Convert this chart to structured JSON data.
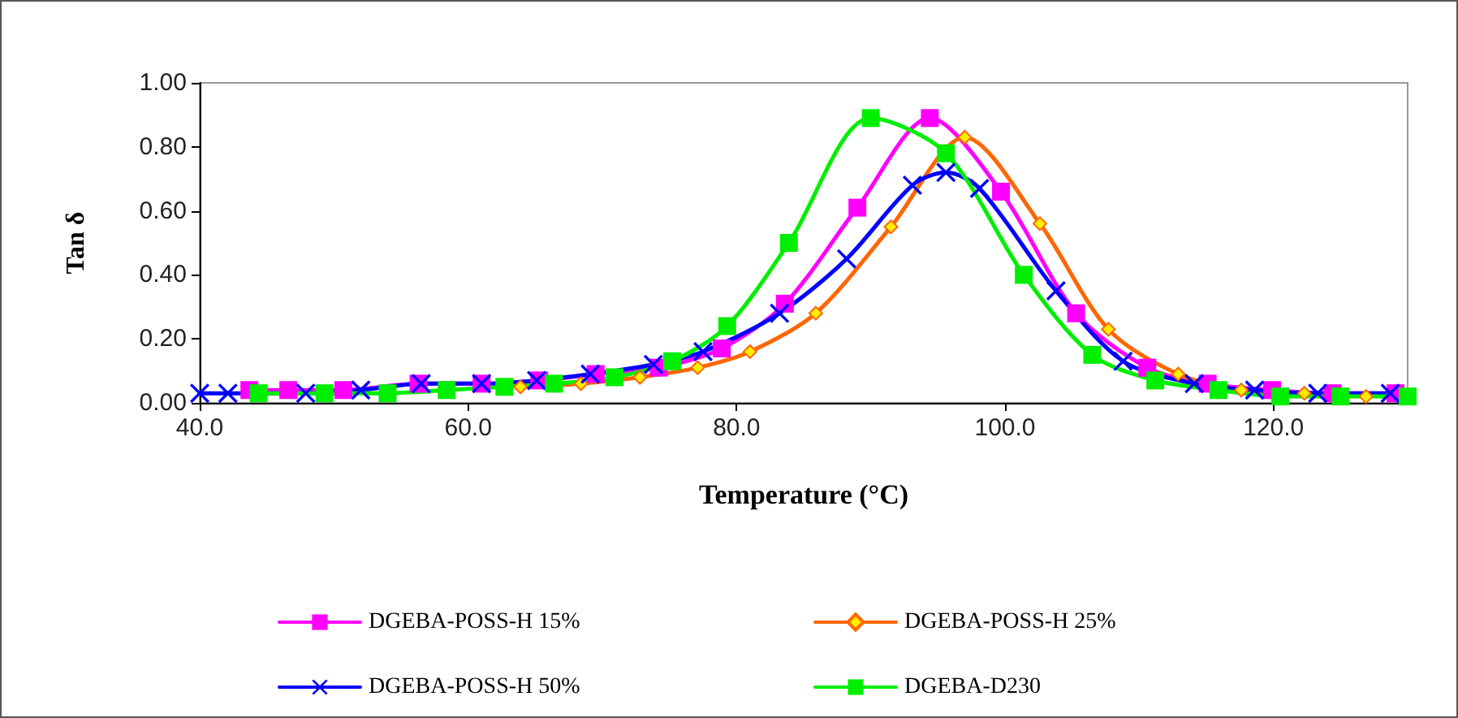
{
  "chart_data": {
    "type": "line",
    "xlabel": "Temperature (°C)",
    "ylabel": "Tan δ",
    "xlim": [
      40,
      130
    ],
    "xticks": [
      {
        "value": 40,
        "label": "40.0"
      },
      {
        "value": 60,
        "label": "60.0"
      },
      {
        "value": 80,
        "label": "80.0"
      },
      {
        "value": 100,
        "label": "100.0"
      },
      {
        "value": 120,
        "label": "120.0"
      }
    ],
    "ylim": [
      0,
      1
    ],
    "yticks": [
      {
        "value": 0,
        "label": "0.00"
      },
      {
        "value": 0.2,
        "label": "0.20"
      },
      {
        "value": 0.4,
        "label": "0.40"
      },
      {
        "value": 0.6,
        "label": "0.60"
      },
      {
        "value": 0.8,
        "label": "0.80"
      },
      {
        "value": 1,
        "label": "1.00"
      }
    ],
    "grid": false,
    "legend": "bottom",
    "line_style": "solid",
    "series": [
      {
        "name": "DGEBA-POSS-H 15%",
        "color": "#ff00ff",
        "marker": "square",
        "x": [
          43.7,
          46.6,
          50.7,
          56.3,
          61.0,
          65.3,
          69.5,
          74.2,
          78.9,
          83.6,
          89.0,
          94.4,
          99.7,
          105.3,
          110.6,
          115.1,
          119.9,
          124.4,
          129.1
        ],
        "values": [
          0.04,
          0.04,
          0.04,
          0.06,
          0.06,
          0.07,
          0.09,
          0.11,
          0.17,
          0.31,
          0.61,
          0.89,
          0.66,
          0.28,
          0.11,
          0.06,
          0.04,
          0.03,
          0.03
        ]
      },
      {
        "name": "DGEBA-POSS-H 25%",
        "color": "#ff6600",
        "marker": "diamond",
        "x": [
          63.9,
          68.4,
          72.8,
          77.1,
          81.0,
          85.9,
          91.5,
          97.0,
          102.6,
          107.7,
          112.9,
          117.6,
          122.3,
          126.9
        ],
        "values": [
          0.05,
          0.06,
          0.08,
          0.11,
          0.16,
          0.28,
          0.55,
          0.83,
          0.56,
          0.23,
          0.09,
          0.04,
          0.03,
          0.02
        ]
      },
      {
        "name": "DGEBA-POSS-H 50%",
        "color": "#0000ff",
        "marker": "cross",
        "x": [
          40,
          42.1,
          47.9,
          52.0,
          56.5,
          61.0,
          65.1,
          69.1,
          73.8,
          77.5,
          83.2,
          88.2,
          93.1,
          95.6,
          98.1,
          103.8,
          108.8,
          114.1,
          118.6,
          123.3,
          128.7
        ],
        "values": [
          0.03,
          0.03,
          0.03,
          0.04,
          0.06,
          0.06,
          0.07,
          0.09,
          0.12,
          0.16,
          0.28,
          0.45,
          0.68,
          0.72,
          0.67,
          0.35,
          0.13,
          0.06,
          0.04,
          0.03,
          0.03
        ]
      },
      {
        "name": "DGEBA-D230",
        "color": "#00ee00",
        "marker": "square",
        "x": [
          44.4,
          49.3,
          54.0,
          58.4,
          62.7,
          66.4,
          70.9,
          75.2,
          79.3,
          83.9,
          90.0,
          95.6,
          101.4,
          106.5,
          111.2,
          115.9,
          120.5,
          125.0,
          130.0
        ],
        "values": [
          0.03,
          0.03,
          0.03,
          0.04,
          0.05,
          0.06,
          0.08,
          0.13,
          0.24,
          0.5,
          0.89,
          0.78,
          0.4,
          0.15,
          0.07,
          0.04,
          0.02,
          0.02,
          0.02
        ]
      }
    ]
  }
}
